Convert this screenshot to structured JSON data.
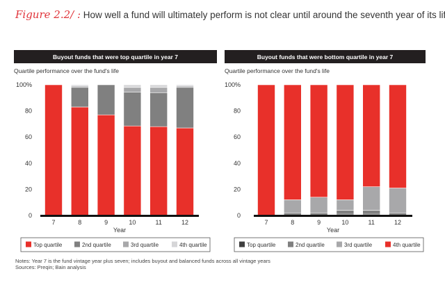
{
  "figure": {
    "label": "Figure 2.2/ :",
    "title": "How well a fund will ultimately perform is not clear until around the seventh year of its life"
  },
  "colors": {
    "red": "#e8302a",
    "dark": "#3f3f3f",
    "q2": "#808080",
    "q3": "#a8a8aa",
    "q4": "#d6d6d8"
  },
  "chart_data": [
    {
      "type": "bar",
      "stacked": true,
      "title": "Buyout funds that were top quartile in year 7",
      "subtitle": "Quartile performance over the fund's life",
      "xlabel": "Year",
      "ylabel": "",
      "ylim": [
        0,
        100
      ],
      "yticks": [
        "0",
        "20",
        "40",
        "60",
        "80",
        "100%"
      ],
      "categories": [
        "7",
        "8",
        "9",
        "10",
        "11",
        "12"
      ],
      "series": [
        {
          "name": "Top quartile",
          "color": "#e8302a",
          "values": [
            100,
            83,
            77,
            68.5,
            68,
            67
          ]
        },
        {
          "name": "2nd quartile",
          "color": "#808080",
          "values": [
            0,
            15,
            23,
            26,
            26,
            31
          ]
        },
        {
          "name": "3rd quartile",
          "color": "#a8a8aa",
          "values": [
            0,
            1,
            0,
            3.5,
            4,
            1
          ]
        },
        {
          "name": "4th quartile",
          "color": "#d6d6d8",
          "values": [
            0,
            1,
            0,
            2,
            2,
            1
          ]
        }
      ],
      "legend": [
        "Top quartile",
        "2nd quartile",
        "3rd quartile",
        "4th quartile"
      ],
      "legend_placement": "bottom"
    },
    {
      "type": "bar",
      "stacked": true,
      "title": "Buyout funds that were bottom quartile in year 7",
      "subtitle": "Quartile performance over the fund's life",
      "xlabel": "Year",
      "ylabel": "",
      "ylim": [
        0,
        100
      ],
      "yticks": [
        "0",
        "20",
        "40",
        "60",
        "80",
        "100%"
      ],
      "categories": [
        "7",
        "8",
        "9",
        "10",
        "11",
        "12"
      ],
      "series": [
        {
          "name": "Top quartile",
          "color": "#3f3f3f",
          "values": [
            0,
            0,
            0,
            1,
            1,
            0
          ]
        },
        {
          "name": "2nd quartile",
          "color": "#808080",
          "values": [
            0,
            2,
            2,
            3,
            3,
            2
          ]
        },
        {
          "name": "3rd quartile",
          "color": "#a8a8aa",
          "values": [
            0,
            10,
            12,
            8,
            18,
            19
          ]
        },
        {
          "name": "4th quartile",
          "color": "#e8302a",
          "values": [
            100,
            88,
            86,
            88,
            78,
            79
          ]
        }
      ],
      "legend": [
        "Top quartile",
        "2nd quartile",
        "3rd quartile",
        "4th quartile"
      ],
      "legend_placement": "bottom"
    }
  ],
  "notes": {
    "line1": "Notes: Year 7 is the fund vintage year plus seven; includes buyout and balanced funds across all vintage years",
    "line2": "Sources: Preqin; Bain analysis"
  }
}
